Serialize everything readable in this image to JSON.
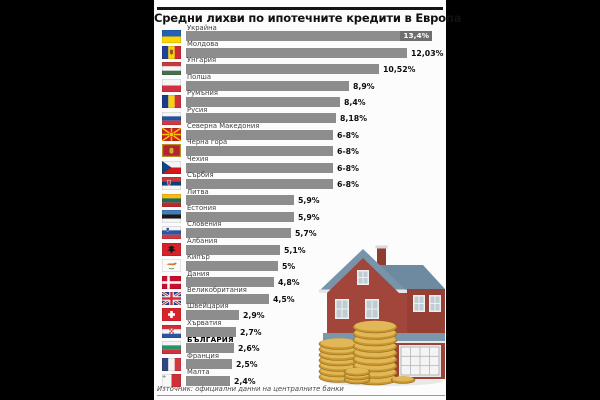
{
  "page": {
    "title": "Средни лихви по ипотечните кредити в Европа",
    "source_note": "Източник: официални данни на централните банки",
    "illustration_alt": "house with stacks of gold coins"
  },
  "colors": {
    "background": "#000000",
    "panel": "#fcfcfc",
    "bar": "#8d8d8d",
    "bar_value_chip": "#6f6f6f",
    "value_text": "#0d0d0d",
    "label_text": "#3f3f3f"
  },
  "chart_data": {
    "type": "bar",
    "orientation": "horizontal",
    "title": "Средни лихви по ипотечните кредити в Европа",
    "unit": "%",
    "xlim": [
      0,
      13.4
    ],
    "grid": false,
    "legend": "none",
    "categories": [
      "Украйна",
      "Молдова",
      "Унгария",
      "Полша",
      "Румъния",
      "Русия",
      "Северна Македония",
      "Черна гора",
      "Чехия",
      "Сърбия",
      "Литва",
      "Естония",
      "Словения",
      "Албания",
      "Кипър",
      "Дания",
      "Великобритания",
      "Швейцария",
      "Хърватия",
      "БЪЛГАРИЯ",
      "Франция",
      "Малта"
    ],
    "value_labels": [
      "13,4%",
      "12,03%",
      "10,52%",
      "8,9%",
      "8,4%",
      "8,18%",
      "6-8%",
      "6-8%",
      "6-8%",
      "6-8%",
      "5,9%",
      "5,9%",
      "5,7%",
      "5,1%",
      "5%",
      "4,8%",
      "4,5%",
      "2,9%",
      "2,7%",
      "2,6%",
      "2,5%",
      "2,4%"
    ],
    "values": [
      13.4,
      12.03,
      10.52,
      8.9,
      8.4,
      8.18,
      "6-8",
      "6-8",
      "6-8",
      "6-8",
      5.9,
      5.9,
      5.7,
      5.1,
      5.0,
      4.8,
      4.5,
      2.9,
      2.7,
      2.6,
      2.5,
      2.4
    ],
    "rows": [
      {
        "country": "Украйна",
        "flag": "ua",
        "value_label": "13,4%",
        "bar_value": 13.4,
        "value_inside": true,
        "highlight": false
      },
      {
        "country": "Молдова",
        "flag": "md",
        "value_label": "12,03%",
        "bar_value": 12.03,
        "value_inside": false,
        "highlight": false
      },
      {
        "country": "Унгария",
        "flag": "hu",
        "value_label": "10,52%",
        "bar_value": 10.52,
        "value_inside": false,
        "highlight": false
      },
      {
        "country": "Полша",
        "flag": "pl",
        "value_label": "8,9%",
        "bar_value": 8.9,
        "value_inside": false,
        "highlight": false
      },
      {
        "country": "Румъния",
        "flag": "ro",
        "value_label": "8,4%",
        "bar_value": 8.4,
        "value_inside": false,
        "highlight": false
      },
      {
        "country": "Русия",
        "flag": "ru",
        "value_label": "8,18%",
        "bar_value": 8.18,
        "value_inside": false,
        "highlight": false
      },
      {
        "country": "Северна Македония",
        "flag": "mk",
        "value_label": "6-8%",
        "bar_value": 8.0,
        "value_inside": false,
        "highlight": false
      },
      {
        "country": "Черна гора",
        "flag": "me",
        "value_label": "6-8%",
        "bar_value": 8.0,
        "value_inside": false,
        "highlight": false
      },
      {
        "country": "Чехия",
        "flag": "cz",
        "value_label": "6-8%",
        "bar_value": 8.0,
        "value_inside": false,
        "highlight": false
      },
      {
        "country": "Сърбия",
        "flag": "rs",
        "value_label": "6-8%",
        "bar_value": 8.0,
        "value_inside": false,
        "highlight": false
      },
      {
        "country": "Литва",
        "flag": "lt",
        "value_label": "5,9%",
        "bar_value": 5.9,
        "value_inside": false,
        "highlight": false
      },
      {
        "country": "Естония",
        "flag": "ee",
        "value_label": "5,9%",
        "bar_value": 5.9,
        "value_inside": false,
        "highlight": false
      },
      {
        "country": "Словения",
        "flag": "si",
        "value_label": "5,7%",
        "bar_value": 5.7,
        "value_inside": false,
        "highlight": false
      },
      {
        "country": "Албания",
        "flag": "al",
        "value_label": "5,1%",
        "bar_value": 5.1,
        "value_inside": false,
        "highlight": false
      },
      {
        "country": "Кипър",
        "flag": "cy",
        "value_label": "5%",
        "bar_value": 5.0,
        "value_inside": false,
        "highlight": false
      },
      {
        "country": "Дания",
        "flag": "dk",
        "value_label": "4,8%",
        "bar_value": 4.8,
        "value_inside": false,
        "highlight": false
      },
      {
        "country": "Великобритания",
        "flag": "gb",
        "value_label": "4,5%",
        "bar_value": 4.5,
        "value_inside": false,
        "highlight": false
      },
      {
        "country": "Швейцария",
        "flag": "ch",
        "value_label": "2,9%",
        "bar_value": 2.9,
        "value_inside": false,
        "highlight": false
      },
      {
        "country": "Хърватия",
        "flag": "hr",
        "value_label": "2,7%",
        "bar_value": 2.7,
        "value_inside": false,
        "highlight": false
      },
      {
        "country": "БЪЛГАРИЯ",
        "flag": "bg",
        "value_label": "2,6%",
        "bar_value": 2.6,
        "value_inside": false,
        "highlight": true
      },
      {
        "country": "Франция",
        "flag": "fr",
        "value_label": "2,5%",
        "bar_value": 2.5,
        "value_inside": false,
        "highlight": false
      },
      {
        "country": "Малта",
        "flag": "mt",
        "value_label": "2,4%",
        "bar_value": 2.4,
        "value_inside": false,
        "highlight": false
      }
    ]
  }
}
